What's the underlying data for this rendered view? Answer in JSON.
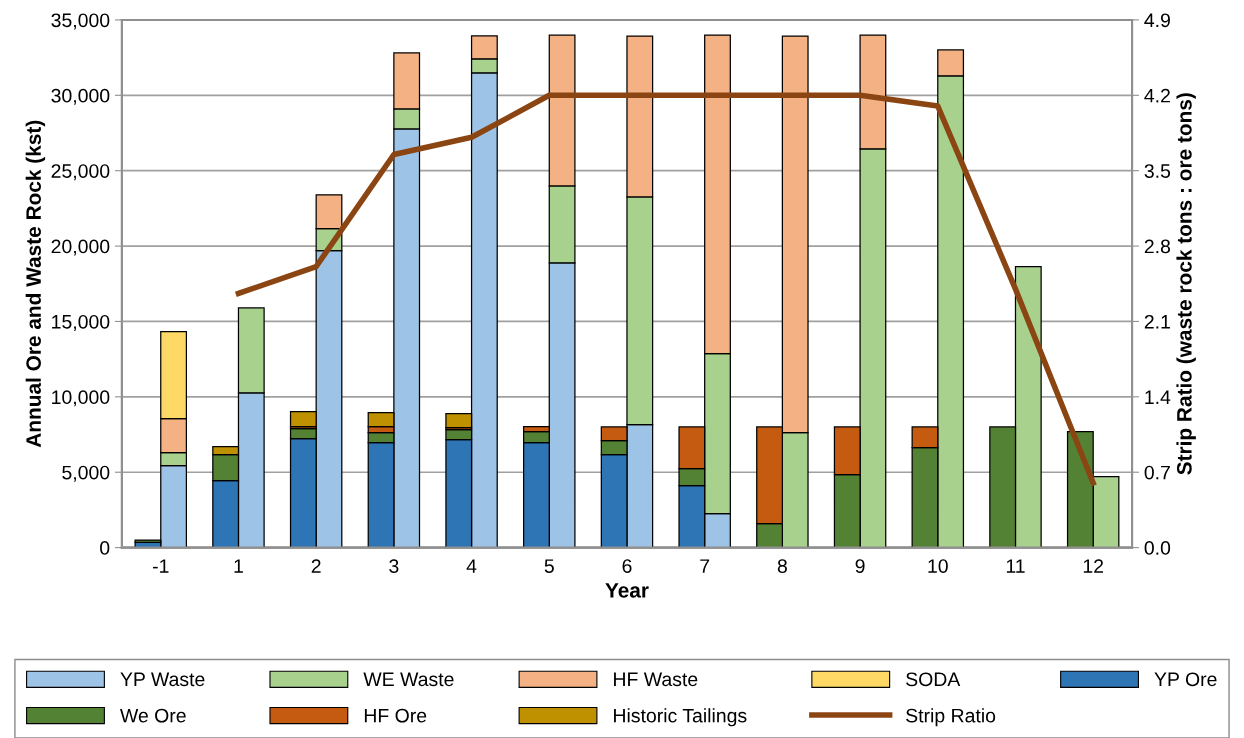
{
  "chart_data": {
    "type": "bar",
    "xlabel": "Year",
    "ylabel": "Annual Ore and Waste Rock (kst)",
    "y2label": "Strip Ratio (waste rock tons : ore tons)",
    "categories": [
      "-1",
      "1",
      "2",
      "3",
      "4",
      "5",
      "6",
      "7",
      "8",
      "9",
      "10",
      "11",
      "12"
    ],
    "series": [
      {
        "name": "YP Waste",
        "color": "#9dc3e6",
        "values": [
          5440,
          10270,
          19690,
          27770,
          31490,
          18890,
          8150,
          2250,
          null,
          null,
          null,
          null,
          null
        ],
        "base": [
          0,
          0,
          0,
          0,
          0,
          0,
          0,
          0,
          null,
          null,
          null,
          null,
          null
        ]
      },
      {
        "name": "WE Waste",
        "color": "#a9d18e",
        "values": [
          860,
          5630,
          1460,
          1330,
          930,
          5100,
          15110,
          10610,
          7620,
          26450,
          31290,
          18630,
          4700
        ],
        "base": [
          5440,
          10270,
          19690,
          27770,
          31490,
          18890,
          8150,
          2250,
          0,
          0,
          0,
          0,
          0
        ]
      },
      {
        "name": "HF Waste",
        "color": "#f4b183",
        "values": [
          2250,
          null,
          2250,
          3710,
          1520,
          10000,
          10670,
          21140,
          26310,
          7550,
          1720,
          null,
          null
        ],
        "base": [
          6300,
          null,
          21150,
          29100,
          32420,
          23990,
          23260,
          12860,
          7620,
          26450,
          31290,
          null,
          null
        ]
      },
      {
        "name": "SODA",
        "color": "#ffd966",
        "values": [
          5770,
          null,
          null,
          null,
          null,
          null,
          null,
          null,
          null,
          null,
          null,
          null,
          null
        ],
        "base": [
          8550,
          null,
          null,
          null,
          null,
          null,
          null,
          null,
          null,
          null,
          null,
          null,
          null
        ]
      },
      {
        "name": "YP Ore",
        "color": "#2e75b6",
        "values": [
          350,
          4440,
          7230,
          6960,
          7160,
          6960,
          6160,
          4110,
          null,
          null,
          null,
          null,
          null
        ],
        "base": [
          0,
          0,
          0,
          0,
          0,
          0,
          0,
          0,
          null,
          null,
          null,
          null,
          null
        ]
      },
      {
        "name": "We Ore",
        "color": "#548235",
        "values": [
          150,
          1720,
          660,
          660,
          660,
          730,
          930,
          1130,
          1590,
          4840,
          6630,
          8000,
          7700
        ],
        "base": [
          350,
          4440,
          7230,
          6960,
          7160,
          6960,
          6160,
          4110,
          0,
          0,
          0,
          0,
          0
        ]
      },
      {
        "name": "HF Ore",
        "color": "#c55a11",
        "values": [
          null,
          null,
          130,
          400,
          130,
          330,
          910,
          2760,
          6410,
          3160,
          1370,
          null,
          null
        ],
        "base": [
          null,
          null,
          7890,
          7620,
          7820,
          7690,
          7090,
          5240,
          1590,
          4840,
          6630,
          null,
          null
        ]
      },
      {
        "name": "Historic Tailings",
        "color": "#bf9000",
        "values": [
          null,
          530,
          1000,
          930,
          930,
          null,
          null,
          null,
          null,
          null,
          null,
          null,
          null
        ],
        "base": [
          null,
          6160,
          8020,
          8020,
          7950,
          null,
          null,
          null,
          null,
          null,
          null,
          null,
          null
        ]
      },
      {
        "name": "Strip Ratio",
        "type": "line",
        "axis": "y2",
        "color": "#8b4513",
        "values": [
          null,
          2.36,
          2.61,
          3.65,
          3.81,
          4.2,
          4.2,
          4.2,
          4.2,
          4.2,
          4.1,
          2.4,
          0.6
        ]
      }
    ],
    "ylim": [
      0,
      35000
    ],
    "yticks": [
      {
        "value": 0,
        "label": "0"
      },
      {
        "value": 5000,
        "label": "5,000"
      },
      {
        "value": 10000,
        "label": "10,000"
      },
      {
        "value": 15000,
        "label": "15,000"
      },
      {
        "value": 20000,
        "label": "20,000"
      },
      {
        "value": 25000,
        "label": "25,000"
      },
      {
        "value": 30000,
        "label": "30,000"
      },
      {
        "value": 35000,
        "label": "35,000"
      }
    ],
    "y2lim": [
      0,
      4.9
    ],
    "y2ticks": [
      {
        "value": 0,
        "label": "0.0"
      },
      {
        "value": 0.7,
        "label": "0.7"
      },
      {
        "value": 1.4,
        "label": "1.4"
      },
      {
        "value": 2.1,
        "label": "2.1"
      },
      {
        "value": 2.8,
        "label": "2.8"
      },
      {
        "value": 3.5,
        "label": "3.5"
      },
      {
        "value": 4.2,
        "label": "4.2"
      },
      {
        "value": 4.9,
        "label": "4.9"
      }
    ],
    "grid": "y",
    "legend": "bottom"
  }
}
